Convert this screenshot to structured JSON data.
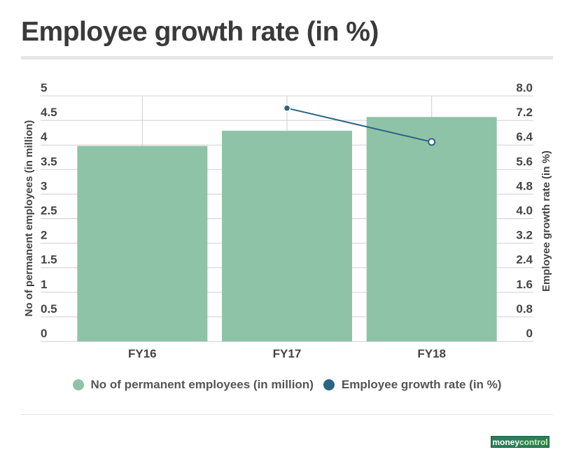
{
  "title": "Employee growth rate (in %)",
  "colors": {
    "bar": "#8fc3a8",
    "line": "#2b6584",
    "grid": "#cfcfcf"
  },
  "legend": [
    {
      "label": "No of permanent employees (in million)",
      "color": "#8fc3a8"
    },
    {
      "label": "Employee growth rate (in %)",
      "color": "#2b6584"
    }
  ],
  "logo": {
    "money": "money",
    "control": "control"
  },
  "chart_data": {
    "type": "bar",
    "categories": [
      "FY16",
      "FY17",
      "FY18"
    ],
    "series": [
      {
        "name": "No of permanent employees (in million)",
        "type": "bar",
        "axis": "left",
        "values": [
          3.98,
          4.29,
          4.57
        ]
      },
      {
        "name": "Employee growth rate (in %)",
        "type": "line",
        "axis": "right",
        "values": [
          null,
          7.6,
          6.5
        ]
      }
    ],
    "ylabel": "No of permanent employees (in million)",
    "y2label": "Employee growth rate (in %)",
    "ylim": [
      0,
      5
    ],
    "y2lim": [
      0,
      8
    ],
    "yticks": [
      "0",
      "0.5",
      "1",
      "1.5",
      "2",
      "2.5",
      "3",
      "3.5",
      "4",
      "4.5",
      "5"
    ],
    "y2ticks": [
      "0",
      "0.8",
      "1.6",
      "2.4",
      "3.2",
      "4.0",
      "4.8",
      "5.6",
      "6.4",
      "7.2",
      "8.0"
    ],
    "grid": true,
    "legend_position": "bottom"
  }
}
